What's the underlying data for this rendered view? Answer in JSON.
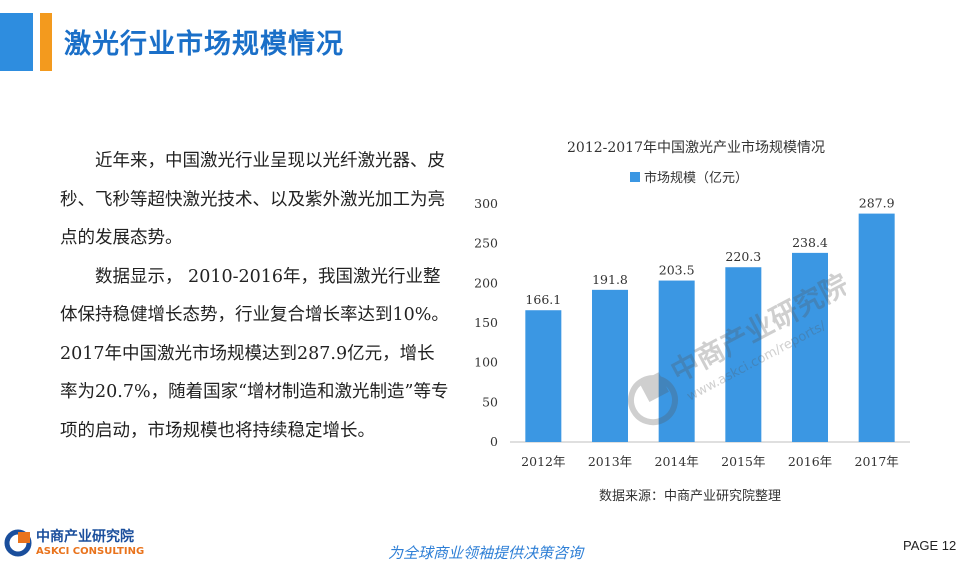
{
  "header": {
    "title": "激光行业市场规模情况"
  },
  "body": {
    "paragraphs": [
      "　　近年来，中国激光行业呈现以光纤激光器、皮秒、飞秒等超快激光技术、以及紫外激光加工为亮点的发展态势。",
      "　　数据显示， 2010-2016年，我国激光行业整体保持稳健增长态势，行业复合增长率达到10%。2017年中国激光市场规模达到287.9亿元，增长率为20.7%，随着国家“增材制造和激光制造”等专项的启动，市场规模也将持续稳定增长。"
    ]
  },
  "chart_data": {
    "type": "bar",
    "title": "2012-2017年中国激光产业市场规模情况",
    "categories": [
      "2012年",
      "2013年",
      "2014年",
      "2015年",
      "2016年",
      "2017年"
    ],
    "series": [
      {
        "name": "市场规模（亿元）",
        "values": [
          166.1,
          191.8,
          203.5,
          220.3,
          238.4,
          287.9
        ]
      }
    ],
    "ylim": [
      0,
      300
    ],
    "yticks": [
      0,
      50,
      100,
      150,
      200,
      250,
      300
    ],
    "legend_position": "top",
    "grid": false,
    "bar_color": "#3b97e3",
    "source": "数据来源：中商产业研究院整理"
  },
  "watermark": {
    "text": "中商产业研究院",
    "url": "www.askci.com/reports/"
  },
  "footer": {
    "logo_cn": "中商产业研究院",
    "logo_en": "ASKCI CONSULTING",
    "slogan": "为全球商业领袖提供决策咨询",
    "page": "PAGE 12"
  },
  "colors": {
    "accent_blue": "#2e8ddf",
    "accent_orange": "#f39a1e",
    "title_blue": "#1a6fc8"
  }
}
